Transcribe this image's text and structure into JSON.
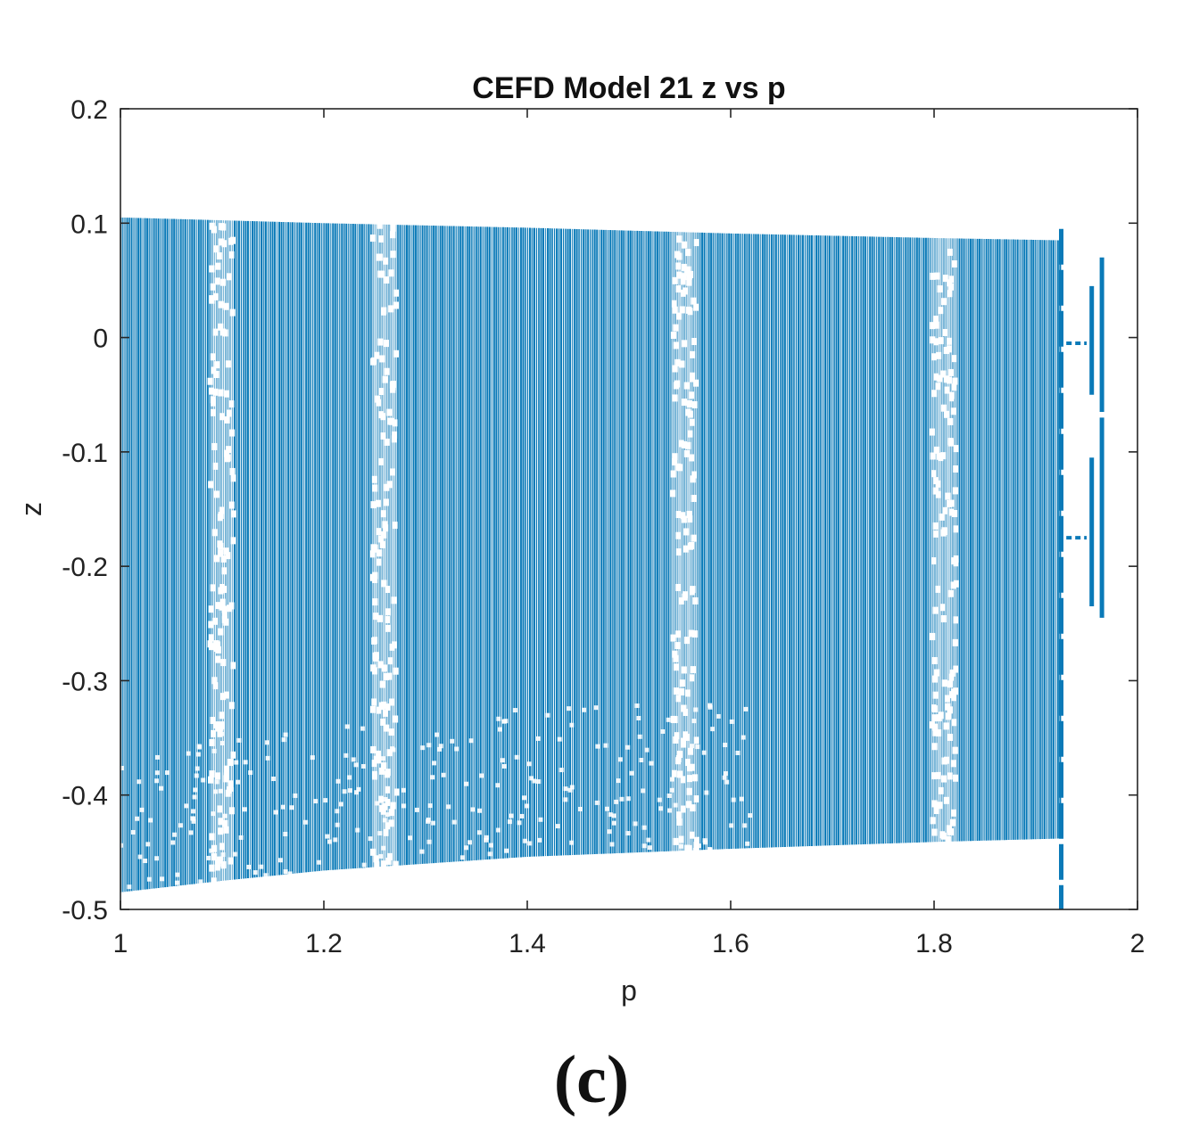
{
  "panel_label": "(c)",
  "chart_data": {
    "type": "scatter",
    "title": "CEFD Model 21 z vs p",
    "xlabel": "p",
    "ylabel": "z",
    "xlim": [
      1,
      2
    ],
    "ylim": [
      -0.5,
      0.2
    ],
    "xticks": [
      1,
      1.2,
      1.4,
      1.6,
      1.8,
      2
    ],
    "xtick_labels": [
      "1",
      "1.2",
      "1.4",
      "1.6",
      "1.8",
      "2"
    ],
    "yticks": [
      -0.5,
      -0.4,
      -0.3,
      -0.2,
      -0.1,
      0,
      0.1,
      0.2
    ],
    "ytick_labels": [
      "-0.5",
      "-0.4",
      "-0.3",
      "-0.2",
      "-0.1",
      "0",
      "0.1",
      "0.2"
    ],
    "grid": false,
    "legend": "none",
    "marker_color": "#0a7ab8",
    "series": [
      {
        "chaotic_band": {
          "p_range": [
            1.0,
            1.925
          ],
          "z_upper": [
            [
              1.0,
              0.105
            ],
            [
              1.2,
              0.1
            ],
            [
              1.4,
              0.096
            ],
            [
              1.6,
              0.091
            ],
            [
              1.8,
              0.087
            ],
            [
              1.925,
              0.085
            ]
          ],
          "z_lower": [
            [
              1.0,
              -0.485
            ],
            [
              1.1,
              -0.475
            ],
            [
              1.2,
              -0.466
            ],
            [
              1.4,
              -0.454
            ],
            [
              1.6,
              -0.447
            ],
            [
              1.8,
              -0.441
            ],
            [
              1.925,
              -0.438
            ]
          ],
          "periodic_windows_p": [
            1.1,
            1.26,
            1.555,
            1.81
          ]
        },
        "boundary_line": {
          "p": 1.925,
          "z_range": [
            -0.5,
            0.095
          ]
        },
        "periodic_branches": [
          {
            "p_range": [
              1.93,
              1.95
            ],
            "z": -0.005
          },
          {
            "p_range": [
              1.93,
              1.95
            ],
            "z": -0.175
          },
          {
            "p": 1.955,
            "z_range": [
              -0.05,
              0.045
            ]
          },
          {
            "p": 1.955,
            "z_range": [
              -0.235,
              -0.105
            ]
          },
          {
            "p": 1.965,
            "z_range": [
              -0.065,
              0.07
            ]
          },
          {
            "p": 1.965,
            "z_range": [
              -0.245,
              -0.07
            ]
          }
        ]
      }
    ]
  }
}
